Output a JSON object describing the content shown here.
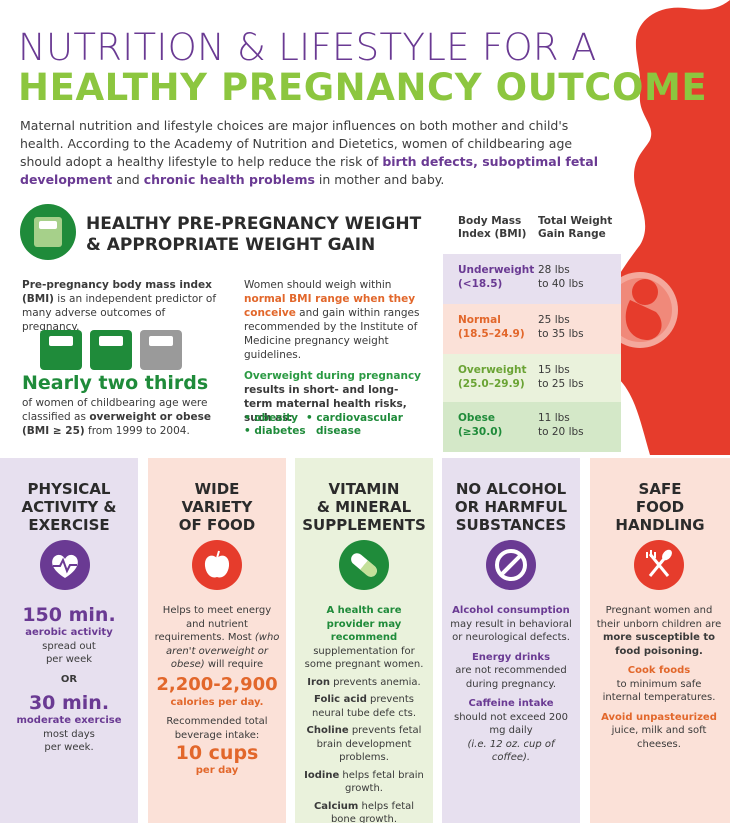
{
  "title": {
    "line1": "NUTRITION & LIFESTYLE FOR A",
    "line2": "HEALTHY PREGNANCY OUTCOME"
  },
  "intro": {
    "p1": "Maternal nutrition and lifestyle choices are major influences on both mother and child's health. According to the Academy of Nutrition and Dietetics, women of childbearing age should adopt a healthy lifestyle to help reduce the risk of ",
    "b1": "birth defects, suboptimal fetal development",
    "p2": " and ",
    "b2": "chronic health problems",
    "p3": " in mother and baby."
  },
  "weight": {
    "heading1": "HEALTHY PRE-PREGNANCY WEIGHT",
    "heading2": "& APPROPRIATE WEIGHT GAIN",
    "left_bold": "Pre-pregnancy body mass index (BMI)",
    "left_rest": " is an independent predictor of many adverse outcomes of pregnancy.",
    "mid_1": "Women should weigh within ",
    "mid_orange": "normal BMI range when they conceive",
    "mid_2": " and gain within ranges recommended by the Institute of Medicine pregnancy weight guidelines.",
    "nearly": "Nearly two thirds",
    "nearly_1": "of women of childbearing age were classified as ",
    "nearly_b": "overweight or obese",
    "nearly_2": "(BMI ≥ 25)",
    "nearly_3": " from 1999 to 2004.",
    "risk_orange": "Overweight during pregnancy",
    "risk_text": " results in short- and long-term maternal health risks, such as:",
    "risk_items": [
      "obesity",
      "diabetes",
      "cardiovascular",
      "disease"
    ]
  },
  "bmi_table": {
    "col1": [
      "Body Mass",
      "Index (BMI)"
    ],
    "col2": [
      "Total Weight",
      "Gain Range"
    ],
    "rows": [
      {
        "cat": "Underweight",
        "range": "(<18.5)",
        "g1": "28 lbs",
        "g2": "to 40 lbs",
        "bg": "#e7e0ef",
        "color": "#6a3a93"
      },
      {
        "cat": "Normal",
        "range": "(18.5–24.9)",
        "g1": "25 lbs",
        "g2": "to 35 lbs",
        "bg": "#fbe1d8",
        "color": "#e2672b"
      },
      {
        "cat": "Overweight",
        "range": "(25.0–29.9)",
        "g1": "15 lbs",
        "g2": "to 25 lbs",
        "bg": "#eaf2dc",
        "color": "#6aa334"
      },
      {
        "cat": "Obese",
        "range": "(≥30.0)",
        "g1": "11 lbs",
        "g2": "to 20 lbs",
        "bg": "#d4e8c8",
        "color": "#1f8b3a"
      }
    ]
  },
  "cards": {
    "c1": {
      "h": [
        "PHYSICAL",
        "ACTIVITY &",
        "EXERCISE"
      ],
      "big1": "150 min.",
      "s1": "aerobic activity",
      "t1": "spread out",
      "t2": "per week",
      "or": "OR",
      "big2": "30 min.",
      "s2": "moderate exercise",
      "t3": "most days",
      "t4": "per week."
    },
    "c2": {
      "h": [
        "WIDE",
        "VARIETY",
        "OF FOOD"
      ],
      "t1": "Helps to meet energy and nutrient requirements. Most ",
      "i1": "(who aren't overweight or obese)",
      "t2": " will require",
      "big1": "2,200-2,900",
      "s1": "calories per day.",
      "t3": "Recommended total beverage intake:",
      "big2": "10 cups",
      "s2": "per day"
    },
    "c3": {
      "h": [
        "VITAMIN",
        "& MINERAL",
        "SUPPLEMENTS"
      ],
      "g1": "A health care provider may recommend",
      "t1": " supplementation for some pregnant women.",
      "b1": "Iron",
      "t2": " prevents anemia.",
      "b2": "Folic acid",
      "t3": " prevents neural tube defe cts.",
      "b3": "Choline",
      "t4": " prevents fetal brain development problems.",
      "b4": "Iodine",
      "t5": " helps fetal brain growth.",
      "b5": "Calcium",
      "t6": " helps fetal bone growth."
    },
    "c4": {
      "h": [
        "NO ALCOHOL",
        "OR HARMFUL",
        "SUBSTANCES"
      ],
      "p1": "Alcohol consumption",
      "t1": "may result in behavioral or neurological defects.",
      "p2": "Energy drinks",
      "t2": "are not recommended during pregnancy.",
      "p3": "Caffeine intake",
      "t3": "should not exceed 200 mg daily",
      "i1": "(i.e. 12 oz. cup of coffee)."
    },
    "c5": {
      "h": [
        "SAFE",
        "FOOD",
        "HANDLING"
      ],
      "t1": "Pregnant women and their unborn children are ",
      "b1": "more susceptible to food poisoning.",
      "o1": "Cook foods",
      "t2": "to minimum safe internal temperatures.",
      "o2": "Avoid unpasteurized",
      "t3": "juice, milk and soft cheeses."
    }
  },
  "colors": {
    "purple": "#6a3a93",
    "lime": "#8cc63f",
    "green": "#1f8b3a",
    "orange": "#e2672b",
    "red": "#e63c2c"
  }
}
